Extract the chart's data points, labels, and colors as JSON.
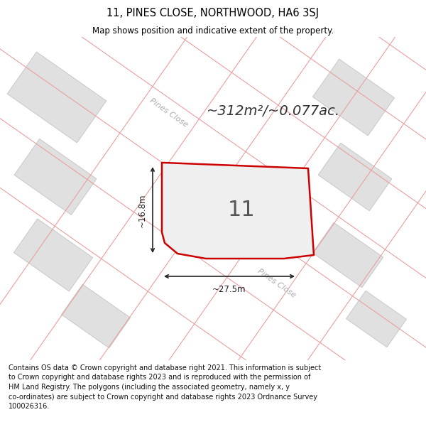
{
  "title_line1": "11, PINES CLOSE, NORTHWOOD, HA6 3SJ",
  "title_line2": "Map shows position and indicative extent of the property.",
  "area_text": "~312m²/~0.077ac.",
  "plot_number": "11",
  "dim_width": "~27.5m",
  "dim_height": "~16.8m",
  "road_label_upper": "Pines Close",
  "road_label_lower": "Pines Close",
  "footer_text": "Contains OS data © Crown copyright and database right 2021. This information is subject\nto Crown copyright and database rights 2023 and is reproduced with the permission of\nHM Land Registry. The polygons (including the associated geometry, namely x, y\nco-ordinates) are subject to Crown copyright and database rights 2023 Ordnance Survey\n100026316.",
  "bg_color": "#f2f2f2",
  "road_color": "#ffffff",
  "building_fill": "#e0e0e0",
  "building_stroke": "#c8c8c8",
  "plot_fill": "#efefef",
  "plot_stroke": "#cc0000",
  "boundary_color": "#e8a0a0",
  "dim_color": "#222222",
  "road_text_color": "#aaaaaa",
  "area_text_color": "#333333",
  "plot_num_color": "#555555",
  "title_fontsize": 10.5,
  "subtitle_fontsize": 8.5,
  "footer_fontsize": 7.0,
  "area_fontsize": 14,
  "plot_num_fontsize": 22,
  "road_fontsize": 8,
  "dim_fontsize": 8.5
}
